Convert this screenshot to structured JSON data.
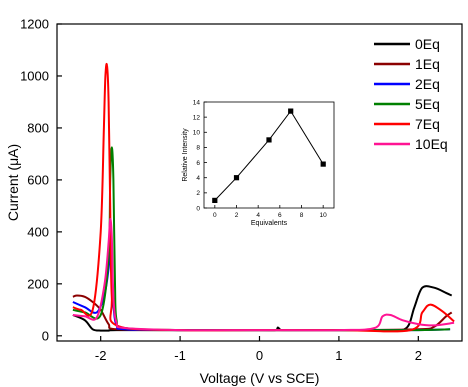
{
  "chart_data": [
    {
      "type": "line",
      "xlabel": "Voltage (V vs SCE)",
      "ylabel": "Current (μA)",
      "xlim": [
        -2.55,
        2.55
      ],
      "ylim": [
        -20,
        1200
      ],
      "xticks": [
        -2,
        -1,
        0,
        1,
        2
      ],
      "yticks": [
        0,
        200,
        400,
        600,
        800,
        1000,
        1200
      ],
      "xtick_labels": [
        "-2",
        "-1",
        "0",
        "1",
        "2"
      ],
      "ytick_labels": [
        "0",
        "200",
        "400",
        "600",
        "800",
        "1000",
        "1200"
      ],
      "legend_position": "top-right",
      "series": [
        {
          "name": "0Eq",
          "color": "#000000",
          "x": [
            -2.35,
            -2.2,
            -2.1,
            -2.0,
            -1.95,
            -1.9,
            -1.8,
            -1.0,
            0.0,
            0.2,
            0.23,
            0.26,
            0.3,
            1.0,
            1.6,
            1.85,
            1.95,
            2.05,
            2.2,
            2.35,
            2.42
          ],
          "y": [
            80,
            60,
            25,
            20,
            20,
            20,
            22,
            22,
            22,
            22,
            32,
            24,
            22,
            22,
            22,
            30,
            110,
            185,
            185,
            165,
            155
          ]
        },
        {
          "name": "1Eq",
          "color": "#8b0000",
          "x": [
            -2.35,
            -2.3,
            -2.2,
            -2.1,
            -2.0,
            -1.9,
            -1.8,
            -1.0,
            0.0,
            1.0,
            2.0,
            2.2,
            2.35,
            2.42
          ],
          "y": [
            150,
            155,
            150,
            130,
            100,
            45,
            25,
            22,
            22,
            22,
            25,
            35,
            75,
            90
          ]
        },
        {
          "name": "2Eq",
          "color": "#0000ff",
          "x": [
            -2.35,
            -2.2,
            -2.05,
            -1.95,
            -1.9,
            -1.88,
            -1.86,
            -1.84,
            -1.8,
            -1.7,
            -1.0,
            0.0,
            1.0,
            2.0,
            2.4
          ],
          "y": [
            130,
            110,
            90,
            160,
            260,
            320,
            280,
            120,
            40,
            25,
            22,
            22,
            22,
            22,
            25
          ]
        },
        {
          "name": "5Eq",
          "color": "#008000",
          "x": [
            -2.35,
            -2.2,
            -2.0,
            -1.9,
            -1.88,
            -1.86,
            -1.84,
            -1.82,
            -1.8,
            -1.7,
            -1.0,
            0.0,
            1.0,
            2.0,
            2.4
          ],
          "y": [
            100,
            90,
            80,
            300,
            600,
            725,
            600,
            200,
            60,
            30,
            22,
            22,
            22,
            22,
            25
          ]
        },
        {
          "name": "7Eq",
          "color": "#ff0000",
          "x": [
            -2.35,
            -2.25,
            -2.1,
            -2.0,
            -1.96,
            -1.94,
            -1.92,
            -1.9,
            -1.88,
            -1.86,
            -1.8,
            -1.0,
            0.0,
            1.0,
            1.9,
            2.05,
            2.15,
            2.3,
            2.45
          ],
          "y": [
            110,
            100,
            100,
            400,
            800,
            1000,
            1040,
            900,
            500,
            150,
            40,
            22,
            22,
            22,
            22,
            90,
            120,
            95,
            55
          ]
        },
        {
          "name": "10Eq",
          "color": "#ff1493",
          "x": [
            -2.35,
            -2.2,
            -2.05,
            -1.95,
            -1.9,
            -1.88,
            -1.86,
            -1.84,
            -1.8,
            -1.7,
            -1.0,
            0.0,
            1.0,
            1.45,
            1.55,
            1.65,
            1.8,
            2.0,
            2.2,
            2.45
          ],
          "y": [
            80,
            75,
            70,
            200,
            360,
            450,
            380,
            150,
            50,
            30,
            22,
            22,
            22,
            30,
            75,
            80,
            60,
            45,
            40,
            50
          ]
        }
      ]
    },
    {
      "type": "line",
      "xlabel": "Equivalents",
      "ylabel": "Relative Intensity",
      "xlim": [
        -1,
        11
      ],
      "ylim": [
        0,
        14
      ],
      "xticks": [
        0,
        2,
        4,
        6,
        8,
        10
      ],
      "yticks": [
        0,
        2,
        4,
        6,
        8,
        10,
        12,
        14
      ],
      "xtick_labels": [
        "0",
        "2",
        "4",
        "6",
        "8",
        "10"
      ],
      "ytick_labels": [
        "0",
        "2",
        "4",
        "6",
        "8",
        "10",
        "12",
        "14"
      ],
      "series": [
        {
          "color": "#000000",
          "marker": "square",
          "x": [
            0,
            2,
            5,
            7,
            10
          ],
          "y": [
            1,
            4,
            9,
            12.8,
            5.8
          ]
        }
      ]
    }
  ]
}
